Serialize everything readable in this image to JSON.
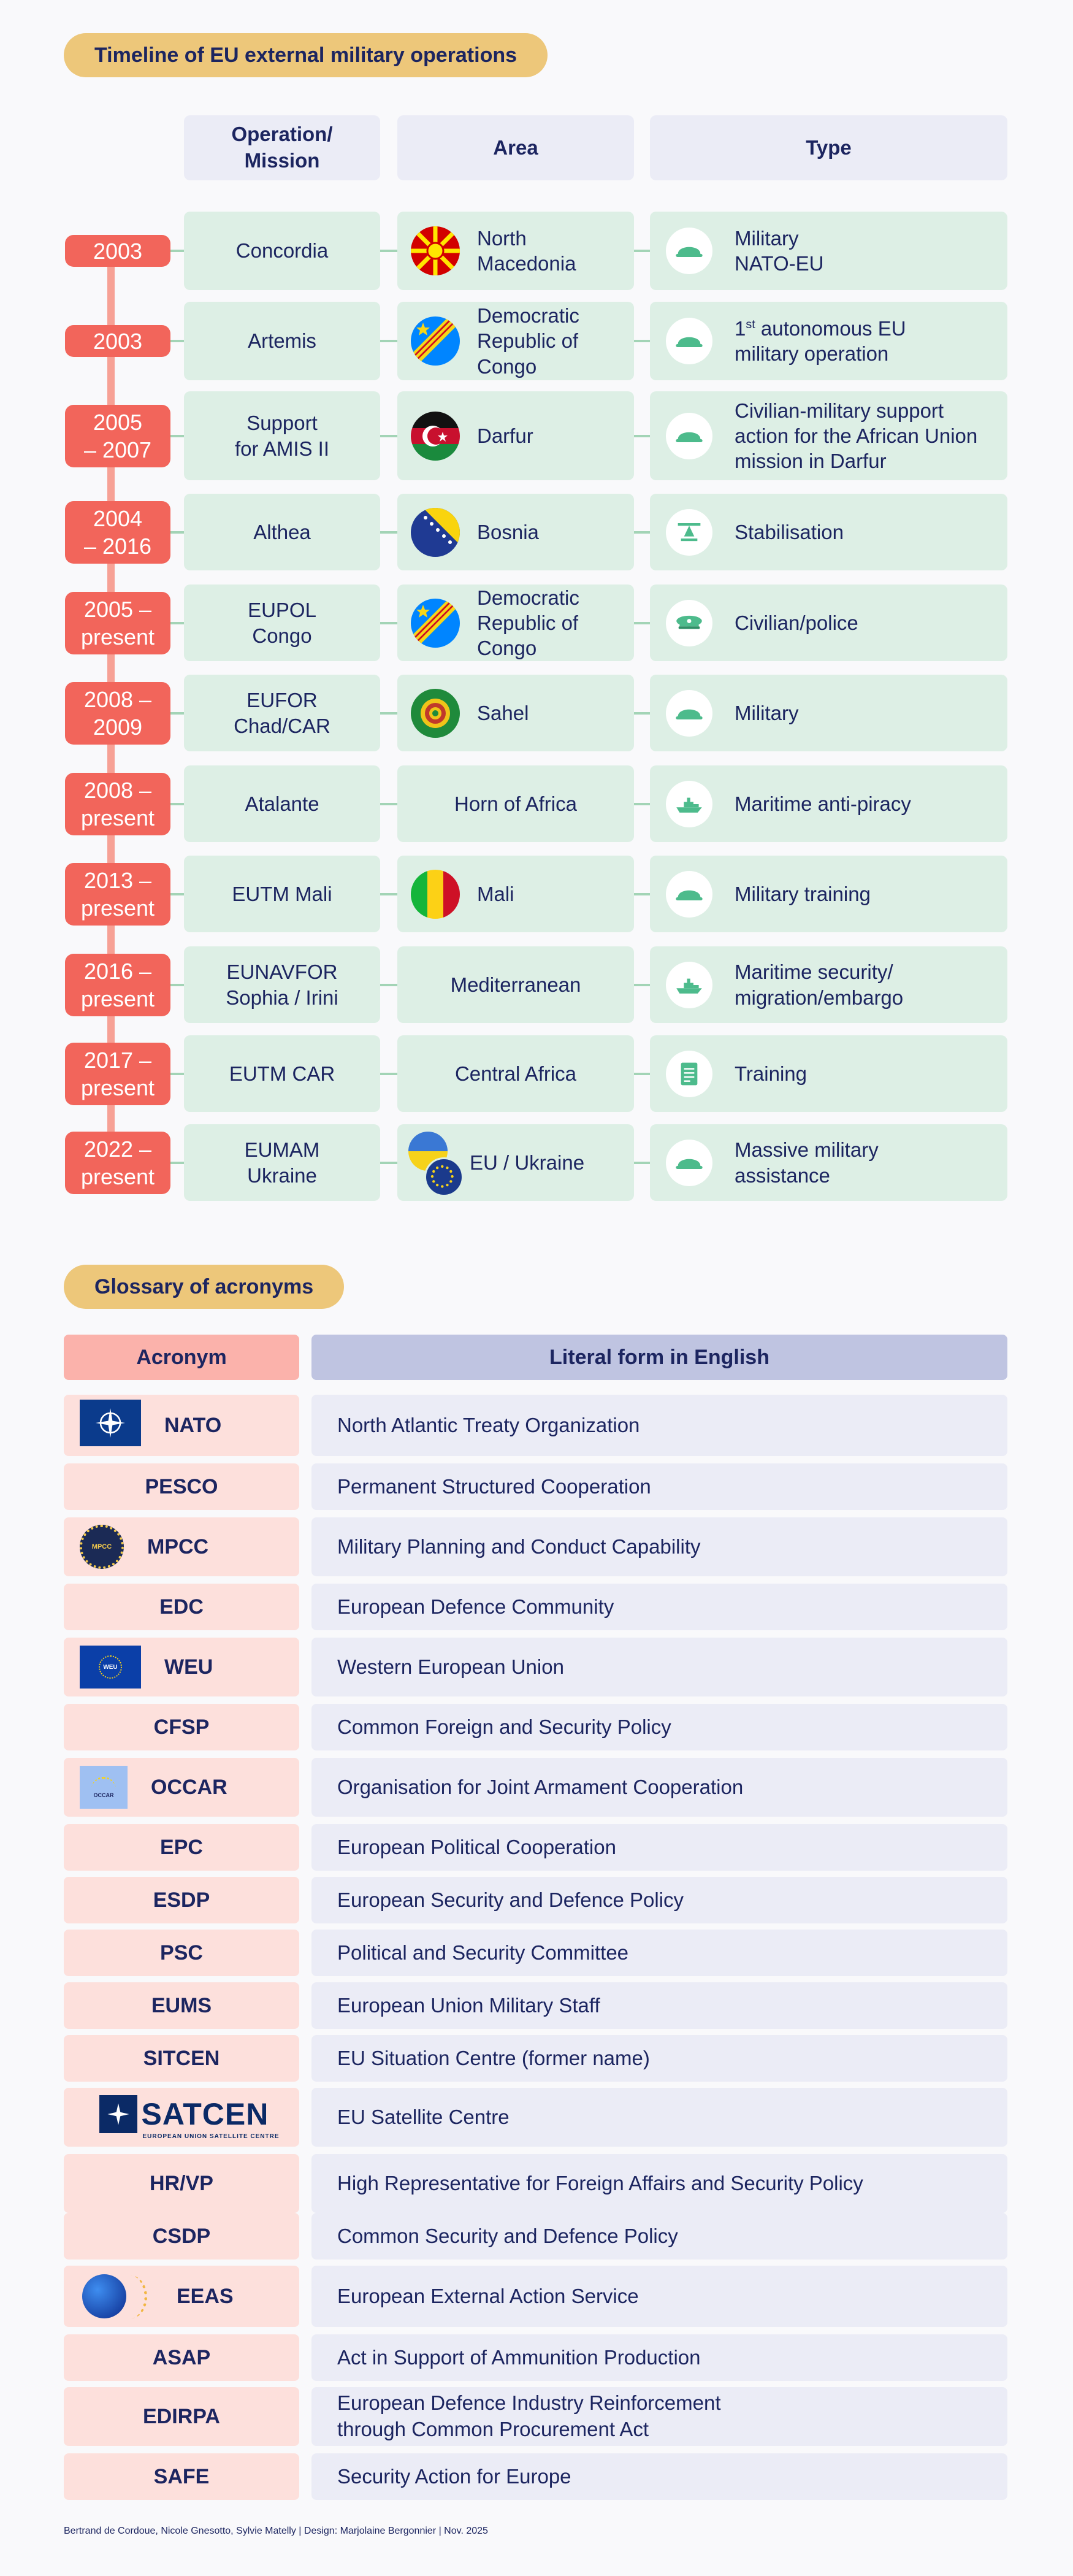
{
  "timeline": {
    "title": "Timeline of EU external military operations",
    "headers": {
      "operation": "Operation/\nMission",
      "area": "Area",
      "type": "Type"
    },
    "rows": [
      {
        "year": "2003",
        "operation": "Concordia",
        "area": "North\nMacedonia",
        "flag": "north-macedonia",
        "type_main": "Military\nNATO-EU",
        "type_icon": "helmet"
      },
      {
        "year": "2003",
        "operation": "Artemis",
        "area": "Democratic\nRepublic of\nCongo",
        "flag": "dr-congo",
        "type_sup": "st",
        "type_pre": "1",
        "type_main": " autonomous EU\nmilitary operation",
        "type_icon": "helmet"
      },
      {
        "year": "2005\n– 2007",
        "operation": "Support\nfor AMIS II",
        "area": "Darfur",
        "flag": "darfur",
        "type_main": "Civilian-military support\naction for the African Union\nmission in Darfur",
        "type_icon": "helmet"
      },
      {
        "year": "2004\n– 2016",
        "operation": "Althea",
        "area": "Bosnia",
        "flag": "bosnia",
        "type_main": "Stabilisation",
        "type_icon": "stabilisation"
      },
      {
        "year": "2005 –\npresent",
        "operation": "EUPOL\nCongo",
        "area": "Democratic\nRepublic of\nCongo",
        "flag": "dr-congo",
        "type_main": "Civilian/police",
        "type_icon": "police-cap"
      },
      {
        "year": "2008 –\n2009",
        "operation": "EUFOR\nChad/CAR",
        "area": "Sahel",
        "flag": "sahel",
        "type_main": "Military",
        "type_icon": "helmet"
      },
      {
        "year": "2008 –\npresent",
        "operation": "Atalante",
        "area": "Horn of Africa",
        "flag": "",
        "type_main": "Maritime anti-piracy",
        "type_icon": "ship"
      },
      {
        "year": "2013 –\npresent",
        "operation": "EUTM Mali",
        "area": "Mali",
        "flag": "mali",
        "type_main": "Military training",
        "type_icon": "helmet"
      },
      {
        "year": "2016 –\npresent",
        "operation": "EUNAVFOR\nSophia / Irini",
        "area": "Mediterranean",
        "flag": "",
        "type_main": "Maritime security/\nmigration/embargo",
        "type_icon": "ship"
      },
      {
        "year": "2017 –\npresent",
        "operation": "EUTM CAR",
        "area": "Central Africa",
        "flag": "",
        "type_main": "Training",
        "type_icon": "document"
      },
      {
        "year": "2022 –\npresent",
        "operation": "EUMAM\nUkraine",
        "area": "EU / Ukraine",
        "flag": "ukraine-eu",
        "type_main": "Massive military\nassistance",
        "type_icon": "helmet"
      }
    ]
  },
  "glossary": {
    "title": "Glossary of acronyms",
    "headers": {
      "acronym": "Acronym",
      "literal": "Literal form in English"
    },
    "rows": [
      {
        "acronym": "NATO",
        "literal": "North Atlantic Treaty Organization",
        "logo": "nato-flag"
      },
      {
        "acronym": "PESCO",
        "literal": "Permanent Structured Cooperation"
      },
      {
        "acronym": "MPCC",
        "literal": "Military Planning and Conduct Capability",
        "logo": "mpcc-seal",
        "logo_text": "MPCC"
      },
      {
        "acronym": "EDC",
        "literal": "European Defence Community"
      },
      {
        "acronym": "WEU",
        "literal": "Western European Union",
        "logo": "weu-flag",
        "logo_text": "WEU"
      },
      {
        "acronym": "CFSP",
        "literal": "Common Foreign and Security Policy"
      },
      {
        "acronym": "OCCAR",
        "literal": "Organisation for Joint Armament Cooperation",
        "logo": "occar-flag",
        "logo_text": "OCCAR"
      },
      {
        "acronym": "EPC",
        "literal": "European Political Cooperation"
      },
      {
        "acronym": "ESDP",
        "literal": "European Security and Defence Policy"
      },
      {
        "acronym": "PSC",
        "literal": "Political and Security Committee"
      },
      {
        "acronym": "EUMS",
        "literal": "European Union Military Staff"
      },
      {
        "acronym": "SITCEN",
        "literal": "EU Situation Centre (former name)"
      },
      {
        "acronym": "SATCEN",
        "literal": "EU Satellite Centre",
        "logo": "satcen-logo",
        "logo_text": "SATCEN",
        "logo_sub": "EUROPEAN UNION SATELLITE CENTRE"
      },
      {
        "acronym": "HR/VP",
        "literal": "High Representative for Foreign Affairs and Security Policy"
      },
      {
        "acronym": "CSDP",
        "literal": "Common Security and Defence Policy"
      },
      {
        "acronym": "EEAS",
        "literal": "European External Action Service",
        "logo": "eeas-globe"
      },
      {
        "acronym": "ASAP",
        "literal": "Act in Support of Ammunition Production"
      },
      {
        "acronym": "EDIRPA",
        "literal": "European Defence Industry Reinforcement\nthrough Common Procurement Act"
      },
      {
        "acronym": "SAFE",
        "literal": "Security Action for Europe"
      }
    ]
  },
  "footer": "Bertrand de Cordoue, Nicole Gnesotto, Sylvie Matelly  |  Design: Marjolaine Bergonnier  |  Nov. 2025",
  "colors": {
    "title_pill": "#edc77a",
    "badge": "#f2655b",
    "spine": "#f7a195",
    "row_bg": "#ddefe5",
    "header_bg": "#ebecf6",
    "acronym_bg": "#fde0dc",
    "acronym_header": "#fbb2ab",
    "literal_header": "#bfc4e1",
    "text": "#1c2560"
  }
}
